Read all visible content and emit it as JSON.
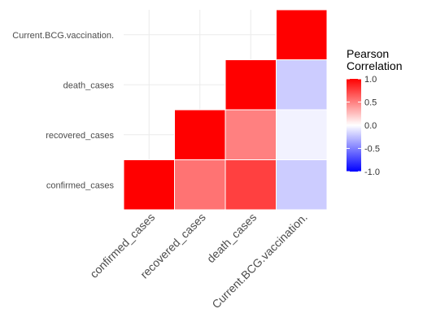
{
  "chart_data": {
    "type": "heatmap",
    "title": "",
    "xlabel": "",
    "ylabel": "",
    "x_categories": [
      "confirmed_cases",
      "recovered_cases",
      "death_cases",
      "Current.BCG.vaccination."
    ],
    "y_categories": [
      "confirmed_cases",
      "recovered_cases",
      "death_cases",
      "Current.BCG.vaccination."
    ],
    "cells": [
      {
        "x": "confirmed_cases",
        "y": "confirmed_cases",
        "value": 1.0
      },
      {
        "x": "recovered_cases",
        "y": "confirmed_cases",
        "value": 0.55
      },
      {
        "x": "death_cases",
        "y": "confirmed_cases",
        "value": 0.75
      },
      {
        "x": "Current.BCG.vaccination.",
        "y": "confirmed_cases",
        "value": -0.2
      },
      {
        "x": "recovered_cases",
        "y": "recovered_cases",
        "value": 1.0
      },
      {
        "x": "death_cases",
        "y": "recovered_cases",
        "value": 0.5
      },
      {
        "x": "Current.BCG.vaccination.",
        "y": "recovered_cases",
        "value": -0.05
      },
      {
        "x": "death_cases",
        "y": "death_cases",
        "value": 1.0
      },
      {
        "x": "Current.BCG.vaccination.",
        "y": "death_cases",
        "value": -0.2
      },
      {
        "x": "Current.BCG.vaccination.",
        "y": "Current.BCG.vaccination.",
        "value": 1.0
      }
    ],
    "legend": {
      "title_lines": [
        "Pearson",
        "Correlation"
      ],
      "ticks": [
        1.0,
        0.5,
        0.0,
        -0.5,
        -1.0
      ],
      "tick_labels": [
        "1.0",
        "0.5",
        "0.0",
        "-0.5",
        "-1.0"
      ],
      "range": [
        -1,
        1
      ],
      "placement": "right"
    },
    "colors": {
      "low": "#0000FF",
      "mid": "#FFFFFF",
      "high": "#FF0000",
      "grid": "#EBEBEB",
      "tick_text": "#4D4D4D"
    },
    "grid": true
  }
}
